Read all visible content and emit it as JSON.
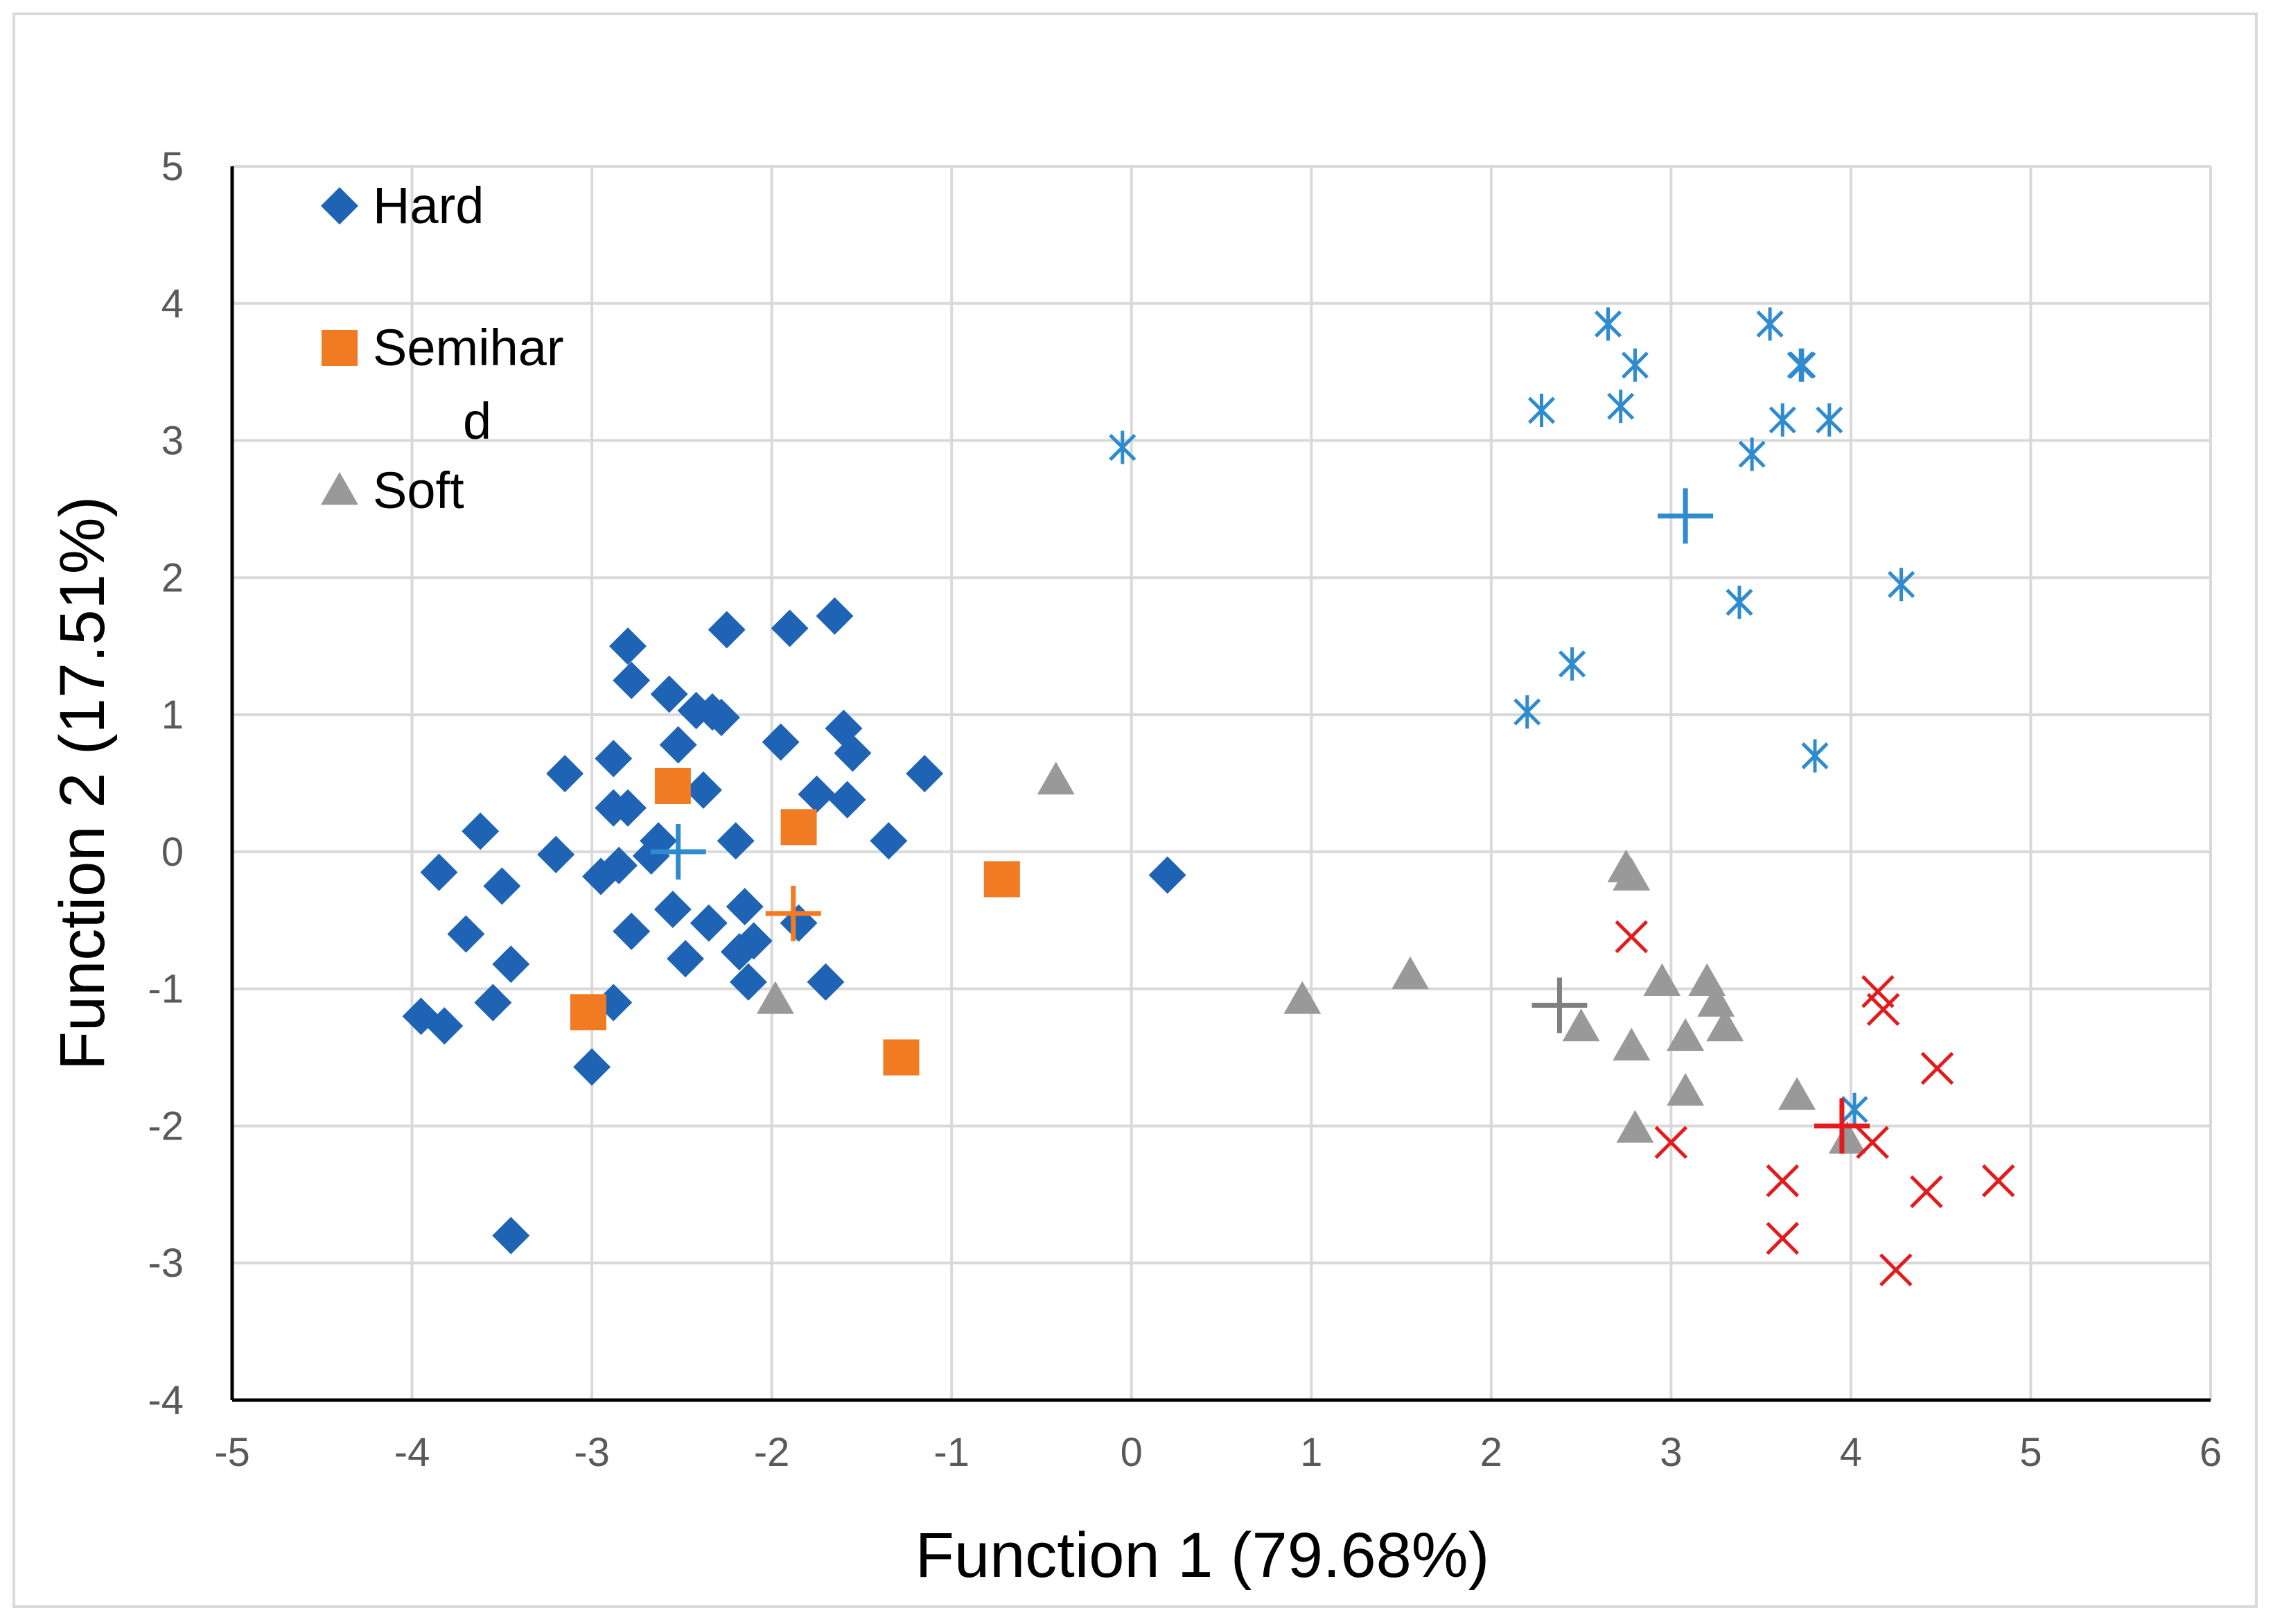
{
  "chart_data": {
    "type": "scatter",
    "xlabel": "Function 1 (79.68%)",
    "ylabel": "Function 2 (17.51%)",
    "xlim": [
      -5,
      6
    ],
    "ylim": [
      -4,
      5
    ],
    "xticks": [
      "-5",
      "-4",
      "-3",
      "-2",
      "-1",
      "0",
      "1",
      "2",
      "3",
      "4",
      "5",
      "6"
    ],
    "yticks": [
      "5",
      "4",
      "3",
      "2",
      "1",
      "0",
      "-1",
      "-2",
      "-3",
      "-4"
    ],
    "grid": true,
    "legend_position": "top-left",
    "legend": [
      {
        "label_line1": "Hard",
        "label_line2": "",
        "marker": "diamond",
        "color": "#1f63b4"
      },
      {
        "label_line1": "Semihar",
        "label_line2": "d",
        "marker": "square",
        "color": "#f07b22"
      },
      {
        "label_line1": "Soft",
        "label_line2": "",
        "marker": "triangle",
        "color": "#999999"
      }
    ],
    "series": [
      {
        "name": "Hard",
        "marker": "diamond",
        "color": "#1f63b4",
        "points": [
          [
            -3.95,
            -1.2
          ],
          [
            -3.85,
            -0.15
          ],
          [
            -3.82,
            -1.27
          ],
          [
            -3.7,
            -0.6
          ],
          [
            -3.62,
            0.15
          ],
          [
            -3.55,
            -1.1
          ],
          [
            -3.5,
            -0.25
          ],
          [
            -3.45,
            -0.82
          ],
          [
            -3.45,
            -2.8
          ],
          [
            -3.2,
            -0.02
          ],
          [
            -3.15,
            0.57
          ],
          [
            -3.0,
            -1.57
          ],
          [
            -2.95,
            -0.18
          ],
          [
            -2.88,
            0.32
          ],
          [
            -2.88,
            0.68
          ],
          [
            -2.88,
            -1.1
          ],
          [
            -2.85,
            -0.1
          ],
          [
            -2.8,
            0.32
          ],
          [
            -2.8,
            1.5
          ],
          [
            -2.78,
            1.25
          ],
          [
            -2.78,
            -0.58
          ],
          [
            -2.67,
            -0.03
          ],
          [
            -2.63,
            0.08
          ],
          [
            -2.57,
            1.15
          ],
          [
            -2.55,
            -0.42
          ],
          [
            -2.52,
            0.78
          ],
          [
            -2.48,
            -0.78
          ],
          [
            -2.42,
            1.03
          ],
          [
            -2.38,
            0.45
          ],
          [
            -2.35,
            -0.52
          ],
          [
            -2.33,
            1.02
          ],
          [
            -2.28,
            0.98
          ],
          [
            -2.25,
            1.62
          ],
          [
            -2.2,
            0.08
          ],
          [
            -2.18,
            -0.73
          ],
          [
            -2.15,
            -0.4
          ],
          [
            -2.13,
            -0.95
          ],
          [
            -2.1,
            -0.65
          ],
          [
            -1.95,
            0.8
          ],
          [
            -1.9,
            1.63
          ],
          [
            -1.85,
            -0.52
          ],
          [
            -1.75,
            0.42
          ],
          [
            -1.7,
            -0.95
          ],
          [
            -1.65,
            1.72
          ],
          [
            -1.6,
            0.9
          ],
          [
            -1.58,
            0.38
          ],
          [
            -1.55,
            0.72
          ],
          [
            -1.35,
            0.08
          ],
          [
            -1.15,
            0.57
          ],
          [
            0.2,
            -0.17
          ]
        ]
      },
      {
        "name": "Semihard",
        "marker": "square",
        "color": "#f07b22",
        "points": [
          [
            -3.02,
            -1.17
          ],
          [
            -2.55,
            0.48
          ],
          [
            -1.85,
            0.18
          ],
          [
            -1.28,
            -1.5
          ],
          [
            -0.72,
            -0.2
          ]
        ]
      },
      {
        "name": "Soft",
        "marker": "triangle",
        "color": "#999999",
        "points": [
          [
            -1.98,
            -1.08
          ],
          [
            -0.42,
            0.52
          ],
          [
            0.95,
            -1.08
          ],
          [
            1.55,
            -0.9
          ],
          [
            2.5,
            -1.28
          ],
          [
            2.75,
            -0.12
          ],
          [
            2.78,
            -0.18
          ],
          [
            2.78,
            -1.42
          ],
          [
            2.8,
            -2.02
          ],
          [
            2.95,
            -0.95
          ],
          [
            3.08,
            -1.35
          ],
          [
            3.08,
            -1.75
          ],
          [
            3.2,
            -0.95
          ],
          [
            3.25,
            -1.1
          ],
          [
            3.3,
            -1.28
          ],
          [
            3.7,
            -1.78
          ],
          [
            3.98,
            -2.1
          ]
        ]
      },
      {
        "marker": "asterisk",
        "color": "#2e8bd0",
        "points": [
          [
            -0.05,
            2.95
          ],
          [
            2.2,
            1.02
          ],
          [
            2.28,
            3.22
          ],
          [
            2.45,
            1.37
          ],
          [
            2.65,
            3.85
          ],
          [
            2.72,
            3.25
          ],
          [
            2.8,
            3.55
          ],
          [
            3.38,
            1.82
          ],
          [
            3.45,
            2.9
          ],
          [
            3.55,
            3.85
          ],
          [
            3.62,
            3.15
          ],
          [
            3.72,
            3.55
          ],
          [
            3.73,
            3.55
          ],
          [
            3.8,
            0.7
          ],
          [
            3.88,
            3.15
          ],
          [
            4.02,
            -1.88
          ],
          [
            4.28,
            1.95
          ]
        ]
      },
      {
        "marker": "x",
        "color": "#e41a1c",
        "points": [
          [
            2.78,
            -0.62
          ],
          [
            3.0,
            -2.12
          ],
          [
            3.62,
            -2.4
          ],
          [
            3.62,
            -2.82
          ],
          [
            4.12,
            -2.12
          ],
          [
            4.15,
            -1.02
          ],
          [
            4.18,
            -1.15
          ],
          [
            4.25,
            -3.05
          ],
          [
            4.42,
            -2.48
          ],
          [
            4.48,
            -1.58
          ],
          [
            4.82,
            -2.4
          ]
        ]
      },
      {
        "marker": "plus",
        "color": "#2e8bd0",
        "points": [
          [
            -2.52,
            0.0
          ],
          [
            3.08,
            2.45
          ]
        ]
      },
      {
        "marker": "plus",
        "color": "#f07b22",
        "points": [
          [
            -1.88,
            -0.45
          ]
        ]
      },
      {
        "marker": "plus",
        "color": "#7f7f7f",
        "points": [
          [
            2.38,
            -1.12
          ]
        ]
      },
      {
        "marker": "plus",
        "color": "#e41a1c",
        "points": [
          [
            3.95,
            -2.0
          ]
        ]
      }
    ]
  }
}
